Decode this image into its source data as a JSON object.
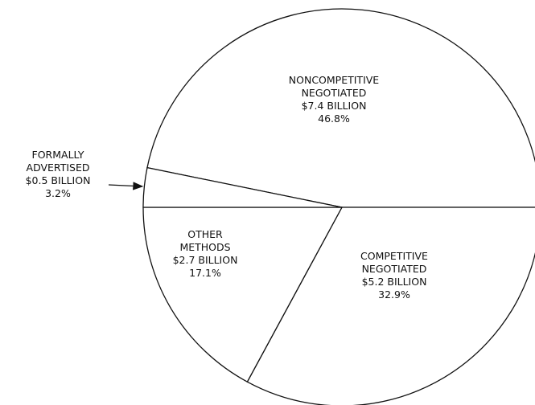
{
  "chart_data": {
    "type": "pie",
    "categories": [
      "NONCOMPETITIVE NEGOTIATED",
      "COMPETITIVE NEGOTIATED",
      "OTHER METHODS",
      "FORMALLY ADVERTISED"
    ],
    "values": [
      46.8,
      32.9,
      17.1,
      3.2
    ],
    "value_labels": [
      "46.8%",
      "32.9%",
      "17.1%",
      "3.2%"
    ],
    "amount_labels": [
      "$7.4 BILLION",
      "$5.2 BILLION",
      "$2.7 BILLION",
      "$0.5 BILLION"
    ],
    "color": "#ffffff"
  }
}
